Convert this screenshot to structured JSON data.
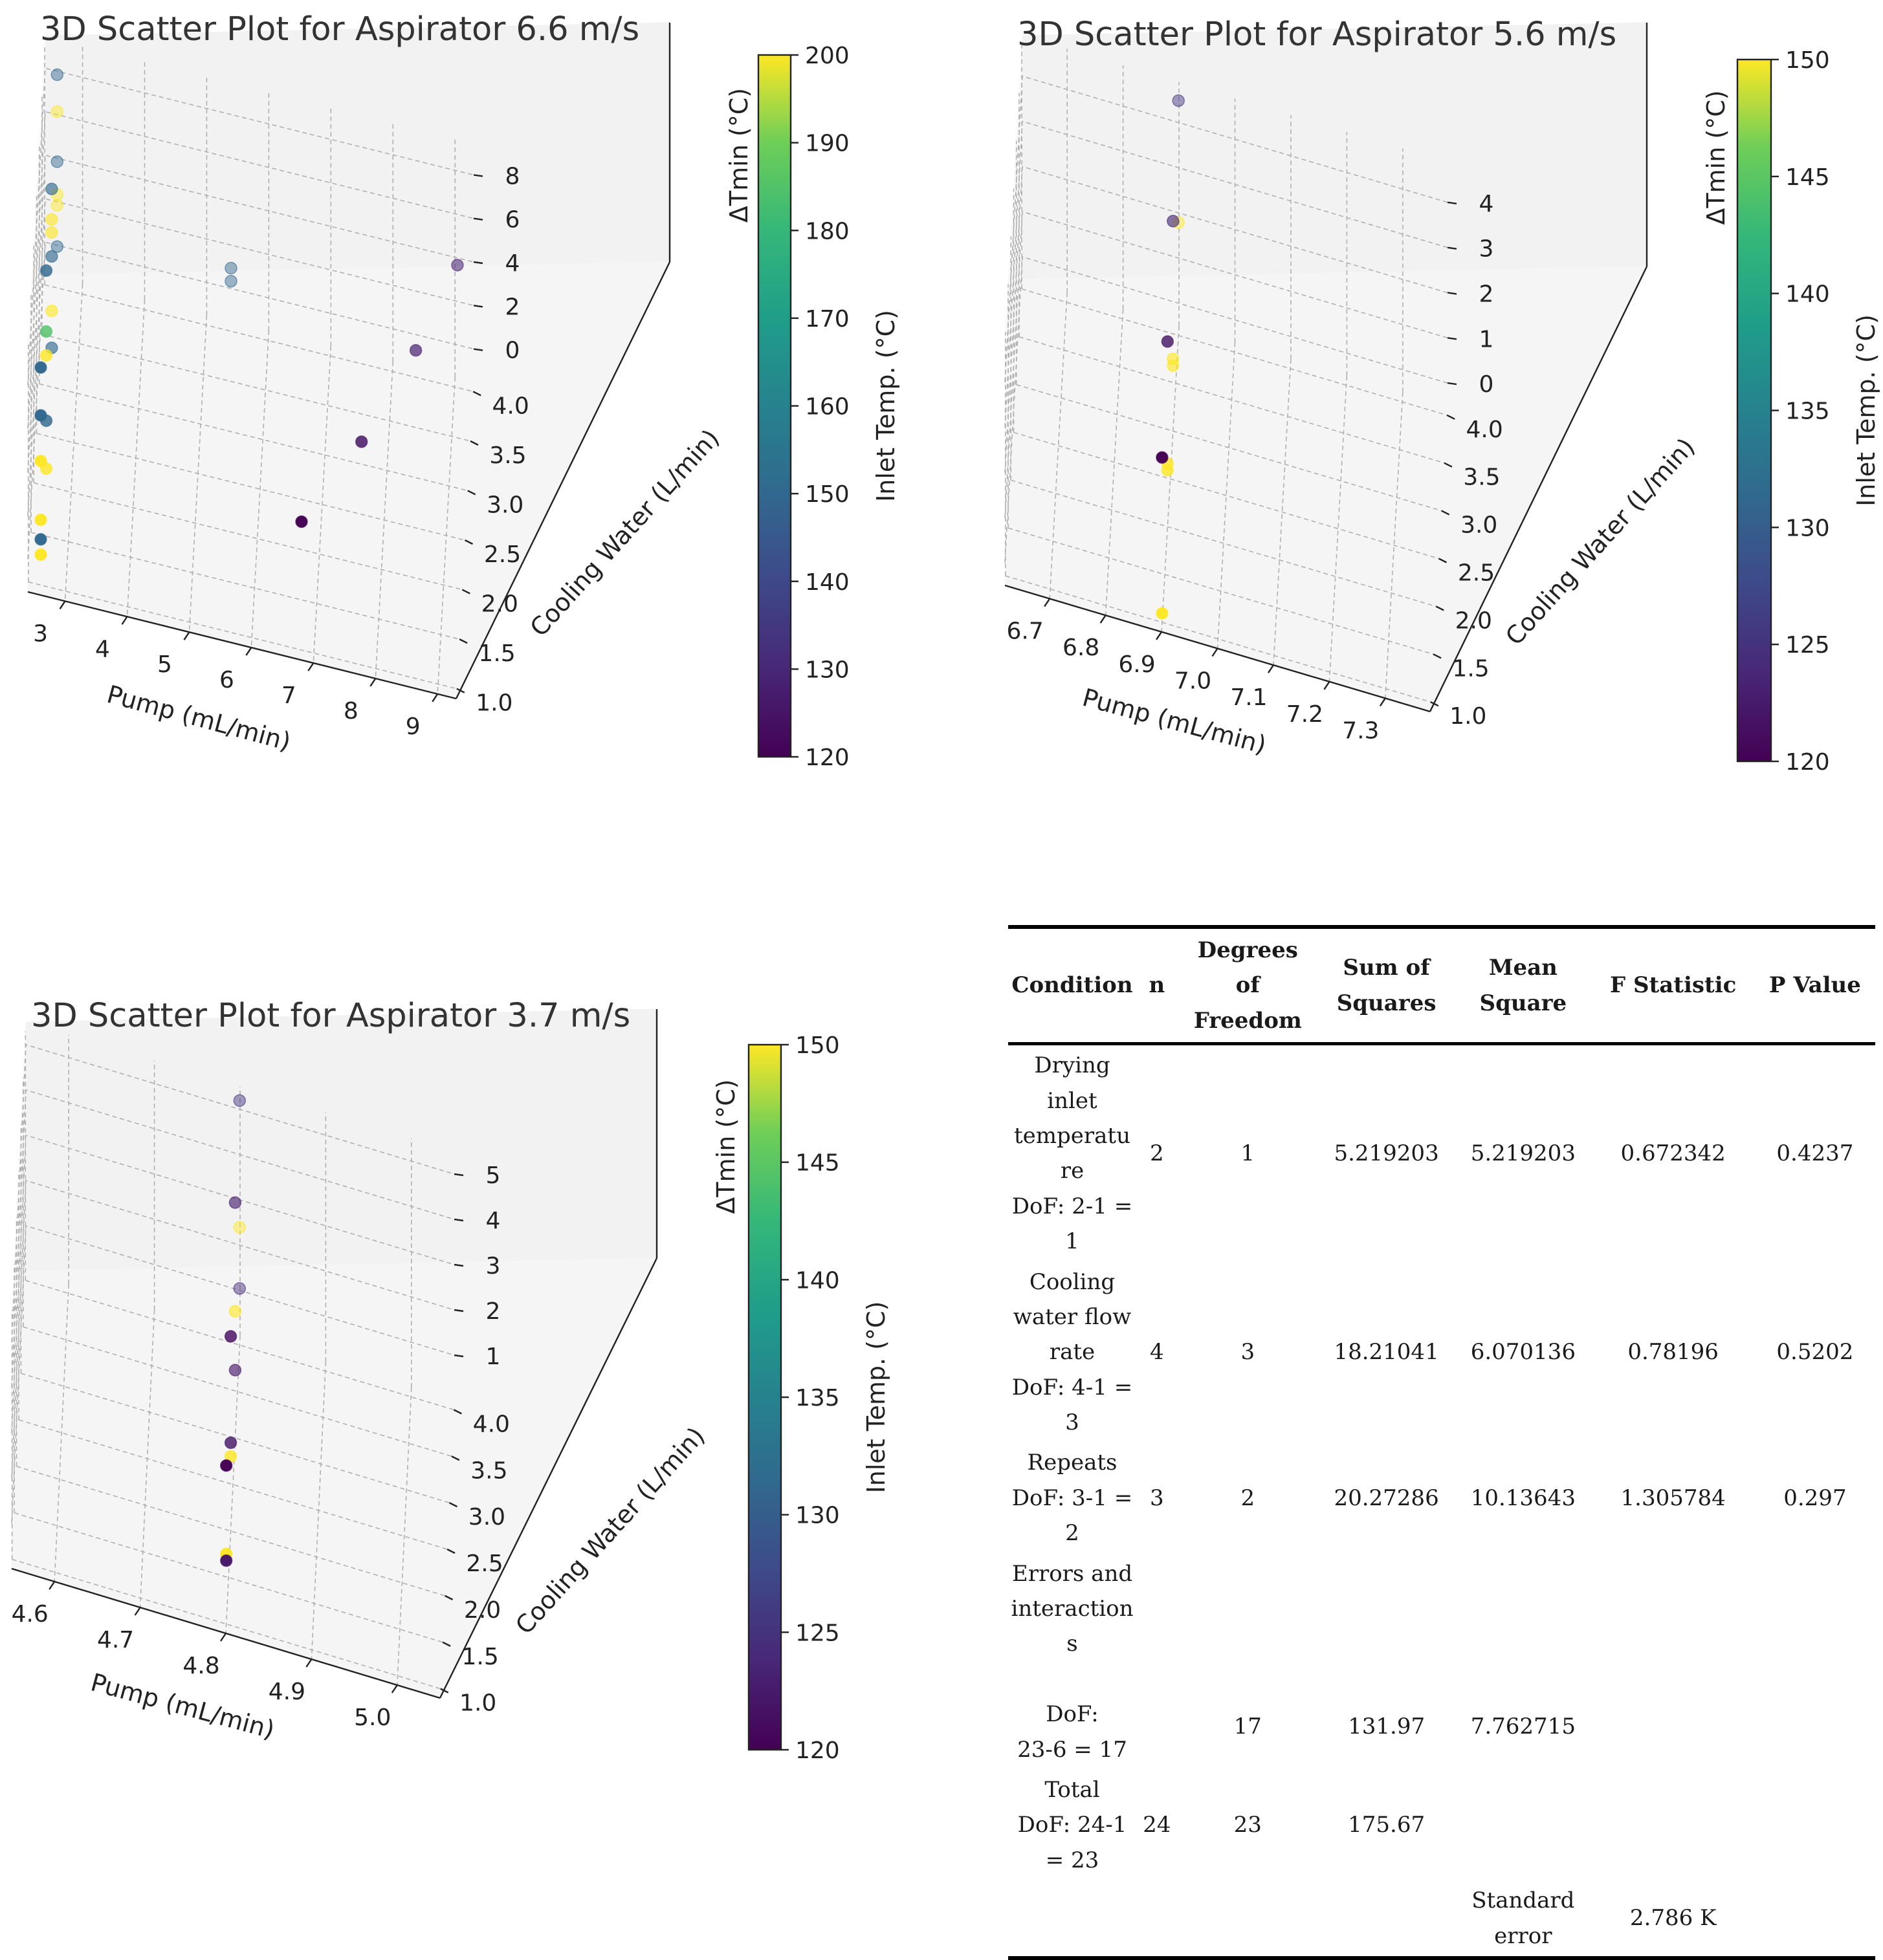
{
  "chart_data": [
    {
      "type": "scatter",
      "title": "3D Scatter Plot for Aspirator 6.6 m/s",
      "xlabel": "Pump (mL/min)",
      "ylabel": "Cooling Water (L/min)",
      "zlabel": "ΔTmin (°C)",
      "colorbar_label": "Inlet Temp. (°C)",
      "colormap": "viridis",
      "color_range": [
        120,
        200
      ],
      "colorbar_ticks": [
        "120",
        "130",
        "140",
        "150",
        "160",
        "170",
        "180",
        "190",
        "200"
      ],
      "x_ticks": [
        "3",
        "4",
        "5",
        "6",
        "7",
        "8",
        "9"
      ],
      "y_ticks": [
        "1.0",
        "1.5",
        "2.0",
        "2.5",
        "3.0",
        "3.5",
        "4.0"
      ],
      "z_ticks": [
        "0",
        "2",
        "4",
        "6",
        "8"
      ],
      "xlim": [
        2.4,
        9.3
      ],
      "ylim": [
        0.9,
        4.1
      ],
      "zlim": [
        -1.5,
        9.5
      ],
      "points": [
        {
          "x": 2.6,
          "y": 1.0,
          "z": 8.5,
          "c": 150
        },
        {
          "x": 2.6,
          "y": 1.0,
          "z": 6.3,
          "c": 150
        },
        {
          "x": 2.6,
          "y": 1.0,
          "z": 4.2,
          "c": 200
        },
        {
          "x": 2.6,
          "y": 1.0,
          "z": 0.6,
          "c": 150
        },
        {
          "x": 2.6,
          "y": 1.0,
          "z": 1.5,
          "c": 200
        },
        {
          "x": 2.6,
          "y": 1.0,
          "z": -0.1,
          "c": 200
        },
        {
          "x": 2.6,
          "y": 2.0,
          "z": 8.4,
          "c": 150
        },
        {
          "x": 2.6,
          "y": 2.0,
          "z": 4.5,
          "c": 200
        },
        {
          "x": 2.6,
          "y": 2.0,
          "z": 5.6,
          "c": 185
        },
        {
          "x": 2.6,
          "y": 2.0,
          "z": 1.5,
          "c": 150
        },
        {
          "x": 2.6,
          "y": 2.0,
          "z": -0.7,
          "c": 200
        },
        {
          "x": 2.6,
          "y": 3.0,
          "z": 7.6,
          "c": 150
        },
        {
          "x": 2.6,
          "y": 3.0,
          "z": 5.6,
          "c": 200
        },
        {
          "x": 2.6,
          "y": 3.0,
          "z": 6.2,
          "c": 200
        },
        {
          "x": 2.6,
          "y": 3.0,
          "z": 4.5,
          "c": 150
        },
        {
          "x": 2.6,
          "y": 3.0,
          "z": 2.0,
          "c": 200
        },
        {
          "x": 2.6,
          "y": 3.0,
          "z": 0.3,
          "c": 150
        },
        {
          "x": 2.6,
          "y": 4.0,
          "z": 8.3,
          "c": 150
        },
        {
          "x": 2.6,
          "y": 4.0,
          "z": 6.6,
          "c": 200
        },
        {
          "x": 2.6,
          "y": 4.0,
          "z": 4.3,
          "c": 150
        },
        {
          "x": 2.6,
          "y": 4.0,
          "z": 2.8,
          "c": 200
        },
        {
          "x": 2.6,
          "y": 4.0,
          "z": 2.3,
          "c": 200
        },
        {
          "x": 2.6,
          "y": 4.0,
          "z": 0.4,
          "c": 150
        },
        {
          "x": 5.4,
          "y": 4.0,
          "z": 1.4,
          "c": 150
        },
        {
          "x": 5.4,
          "y": 4.0,
          "z": 0.8,
          "c": 150
        },
        {
          "x": 6.8,
          "y": 1.0,
          "z": 4.4,
          "c": 120
        },
        {
          "x": 7.7,
          "y": 1.75,
          "z": 5.3,
          "c": 125
        },
        {
          "x": 8.5,
          "y": 2.6,
          "z": 6.2,
          "c": 128
        },
        {
          "x": 9.1,
          "y": 3.4,
          "z": 6.9,
          "c": 128
        }
      ]
    },
    {
      "type": "scatter",
      "title": "3D Scatter Plot for Aspirator 5.6 m/s",
      "xlabel": "Pump (mL/min)",
      "ylabel": "Cooling Water (L/min)",
      "zlabel": "ΔTmin (°C)",
      "colorbar_label": "Inlet Temp. (°C)",
      "colormap": "viridis",
      "color_range": [
        120,
        150
      ],
      "colorbar_ticks": [
        "120",
        "125",
        "130",
        "135",
        "140",
        "145",
        "150"
      ],
      "x_ticks": [
        "6.7",
        "6.8",
        "6.9",
        "7.0",
        "7.1",
        "7.2",
        "7.3"
      ],
      "y_ticks": [
        "1.0",
        "1.5",
        "2.0",
        "2.5",
        "3.0",
        "3.5",
        "4.0"
      ],
      "z_ticks": [
        "0",
        "1",
        "2",
        "3",
        "4"
      ],
      "xlim": [
        6.62,
        7.38
      ],
      "ylim": [
        0.9,
        4.1
      ],
      "zlim": [
        -0.5,
        4.9
      ],
      "points": [
        {
          "x": 6.9,
          "y": 1.0,
          "z": -0.3,
          "c": 150
        },
        {
          "x": 6.9,
          "y": 2.0,
          "z": 0.9,
          "c": 150
        },
        {
          "x": 6.9,
          "y": 2.0,
          "z": 0.75,
          "c": 150
        },
        {
          "x": 6.9,
          "y": 3.0,
          "z": 1.1,
          "c": 150
        },
        {
          "x": 6.9,
          "y": 3.0,
          "z": 0.95,
          "c": 150
        },
        {
          "x": 6.9,
          "y": 4.0,
          "z": 2.0,
          "c": 150
        },
        {
          "x": 6.9,
          "y": 1.0,
          "z": 3.15,
          "c": 120
        },
        {
          "x": 6.9,
          "y": 2.0,
          "z": 3.6,
          "c": 122
        },
        {
          "x": 6.9,
          "y": 3.0,
          "z": 4.15,
          "c": 124
        },
        {
          "x": 6.9,
          "y": 4.0,
          "z": 4.7,
          "c": 125
        }
      ]
    },
    {
      "type": "scatter",
      "title": "3D Scatter Plot for Aspirator 3.7 m/s",
      "xlabel": "Pump (mL/min)",
      "ylabel": "Cooling Water (L/min)",
      "zlabel": "ΔTmin (°C)",
      "colorbar_label": "Inlet Temp. (°C)",
      "colormap": "viridis",
      "color_range": [
        120,
        150
      ],
      "colorbar_ticks": [
        "120",
        "125",
        "130",
        "135",
        "140",
        "145",
        "150"
      ],
      "x_ticks": [
        "4.6",
        "4.7",
        "4.8",
        "4.9",
        "5.0"
      ],
      "y_ticks": [
        "1.0",
        "1.5",
        "2.0",
        "2.5",
        "3.0",
        "3.5",
        "4.0"
      ],
      "z_ticks": [
        "1",
        "2",
        "3",
        "4",
        "5"
      ],
      "xlim": [
        4.55,
        5.05
      ],
      "ylim": [
        0.9,
        4.1
      ],
      "zlim": [
        0.0,
        5.5
      ],
      "points": [
        {
          "x": 4.8,
          "y": 1.0,
          "z": 1.55,
          "c": 150
        },
        {
          "x": 4.8,
          "y": 1.0,
          "z": 1.4,
          "c": 122
        },
        {
          "x": 4.8,
          "y": 2.0,
          "z": 1.65,
          "c": 150
        },
        {
          "x": 4.8,
          "y": 2.0,
          "z": 1.95,
          "c": 122
        },
        {
          "x": 4.8,
          "y": 3.0,
          "z": 1.5,
          "c": 122
        },
        {
          "x": 4.8,
          "y": 3.0,
          "z": 2.8,
          "c": 150
        },
        {
          "x": 4.8,
          "y": 4.0,
          "z": 1.25,
          "c": 124
        },
        {
          "x": 4.8,
          "y": 4.0,
          "z": 2.6,
          "c": 150
        },
        {
          "x": 4.8,
          "y": 1.0,
          "z": 3.5,
          "c": 120
        },
        {
          "x": 4.8,
          "y": 2.0,
          "z": 4.3,
          "c": 121
        },
        {
          "x": 4.8,
          "y": 3.0,
          "z": 5.2,
          "c": 123
        },
        {
          "x": 4.8,
          "y": 4.0,
          "z": 5.4,
          "c": 125
        }
      ]
    }
  ],
  "anova_table": {
    "headers": {
      "condition": "Condition",
      "n": "n",
      "dof": [
        "Degrees",
        "of",
        "Freedom"
      ],
      "ss": [
        "Sum of",
        "Squares"
      ],
      "ms": [
        "Mean",
        "Square"
      ],
      "f": "F Statistic",
      "p": "P Value"
    },
    "rows": [
      {
        "condition": [
          "Drying",
          "inlet",
          "temperatu",
          "re",
          "DoF: 2-1 =",
          "1"
        ],
        "n": "2",
        "dof": "1",
        "ss": "5.219203",
        "ms": "5.219203",
        "f": "0.672342",
        "p": "0.4237"
      },
      {
        "condition": [
          "Cooling",
          "water flow",
          "rate",
          "DoF: 4-1 =",
          "3"
        ],
        "n": "4",
        "dof": "3",
        "ss": "18.21041",
        "ms": "6.070136",
        "f": "0.78196",
        "p": "0.5202"
      },
      {
        "condition": [
          "Repeats",
          "DoF: 3-1 =",
          "2"
        ],
        "n": "3",
        "dof": "2",
        "ss": "20.27286",
        "ms": "10.13643",
        "f": "1.305784",
        "p": "0.297"
      },
      {
        "condition": [
          "Errors and",
          "interaction",
          "s",
          "",
          "DoF:",
          "23-6 = 17"
        ],
        "n": "",
        "dof": "17",
        "ss": "131.97",
        "ms": "7.762715",
        "f": "",
        "p": ""
      },
      {
        "condition": [
          "Total",
          "DoF: 24-1",
          "= 23"
        ],
        "n": "24",
        "dof": "23",
        "ss": "175.67",
        "ms": "",
        "f": "",
        "p": ""
      }
    ],
    "footer": {
      "label": [
        "Standard",
        "error"
      ],
      "value": "2.786 K"
    }
  }
}
